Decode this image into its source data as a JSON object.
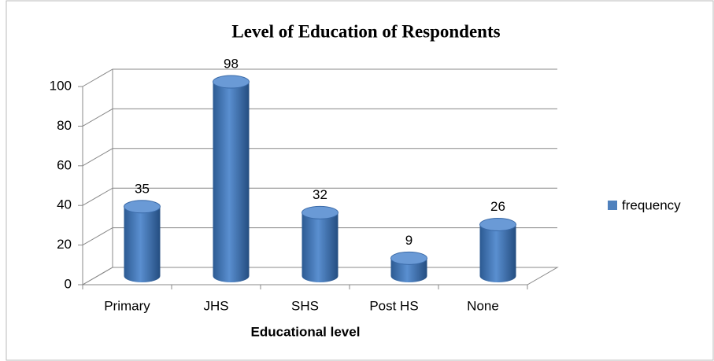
{
  "chart_data": {
    "type": "bar",
    "title": "Level of Education of Respondents",
    "x_label": "Educational level",
    "categories": [
      "Primary",
      "JHS",
      "SHS",
      "Post HS",
      "None"
    ],
    "series": [
      {
        "name": "frequency",
        "color": "#4f81bd",
        "values": [
          35,
          98,
          32,
          9,
          26
        ]
      }
    ],
    "ylim": [
      0,
      100
    ],
    "yticks": [
      0,
      20,
      40,
      60,
      80,
      100
    ],
    "grid": true,
    "legend": "right"
  }
}
